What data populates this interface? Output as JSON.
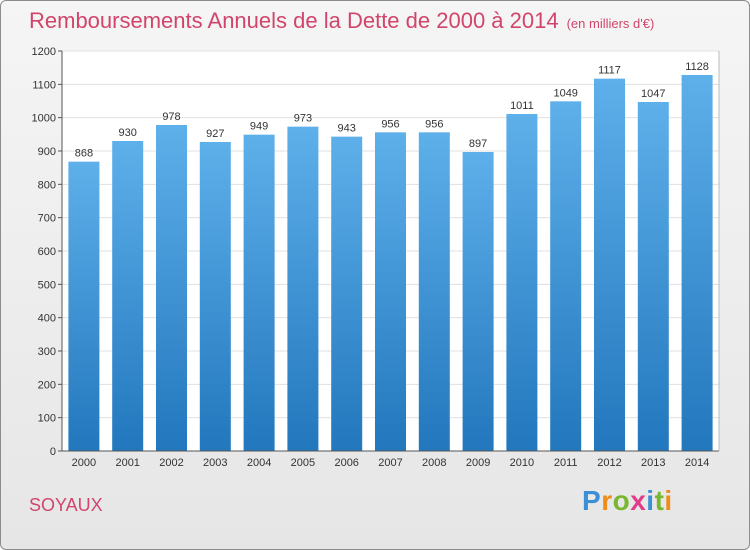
{
  "title": "Remboursements Annuels de la Dette de 2000 à 2014",
  "subtitle": "(en milliers d'€)",
  "location": "SOYAUX",
  "brand": {
    "letters": [
      "P",
      "r",
      "o",
      "x",
      "i",
      "t",
      "i"
    ],
    "colors": [
      "#3a8fd6",
      "#f08c1a",
      "#7ab730",
      "#e03c8a",
      "#3a8fd6",
      "#7ab730",
      "#f08c1a"
    ]
  },
  "colors": {
    "accent": "#d1456c",
    "bar_top": "#5eb0ea",
    "bar_bottom": "#2277bd"
  },
  "chart_data": {
    "type": "bar",
    "title": "Remboursements Annuels de la Dette de 2000 à 2014",
    "xlabel": "",
    "ylabel": "",
    "categories": [
      "2000",
      "2001",
      "2002",
      "2003",
      "2004",
      "2005",
      "2006",
      "2007",
      "2008",
      "2009",
      "2010",
      "2011",
      "2012",
      "2013",
      "2014"
    ],
    "values": [
      868,
      930,
      978,
      927,
      949,
      973,
      943,
      956,
      956,
      897,
      1011,
      1049,
      1117,
      1047,
      1128
    ],
    "ylim": [
      0,
      1200
    ],
    "yticks": [
      0,
      100,
      200,
      300,
      400,
      500,
      600,
      700,
      800,
      900,
      1000,
      1100,
      1200
    ],
    "grid": true
  }
}
